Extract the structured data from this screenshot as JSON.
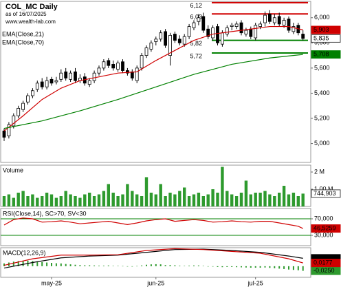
{
  "chart_data": [
    {
      "type": "candlestick",
      "title": "COL_MC Daily",
      "subtitle": "as of 16/07/2025",
      "source": "www.wealth-lab.com",
      "ylim": [
        4.85,
        6.13
      ],
      "yticks": [
        {
          "value": 5,
          "label": "5,000"
        },
        {
          "value": 5.2,
          "label": "5,200"
        },
        {
          "value": 5.4,
          "label": "5,400"
        },
        {
          "value": 5.6,
          "label": "5,600"
        },
        {
          "value": 5.8,
          "label": "5,800"
        },
        {
          "value": 6,
          "label": "6,000"
        }
      ],
      "grid": false,
      "up_color": "#ffffff",
      "down_color": "#000000",
      "open": [
        5.1,
        5.06,
        5.14,
        5.22,
        5.27,
        5.33,
        5.38,
        5.43,
        5.49,
        5.45,
        5.51,
        5.49,
        5.51,
        5.57,
        5.51,
        5.57,
        5.5,
        5.53,
        5.47,
        5.5,
        5.56,
        5.6,
        5.66,
        5.63,
        5.59,
        5.65,
        5.58,
        5.57,
        5.5,
        5.6,
        5.7,
        5.75,
        5.81,
        5.83,
        5.89,
        5.7,
        5.87,
        5.83,
        5.79,
        5.85,
        5.92,
        5.97,
        6.01,
        5.91,
        5.84,
        5.93,
        5.79,
        5.87,
        5.93,
        5.93,
        5.96,
        5.87,
        5.91,
        5.84,
        5.93,
        5.96,
        6.03,
        5.96,
        6.01,
        5.94,
        5.99,
        5.89,
        5.94,
        5.87
      ],
      "high": [
        5.12,
        5.17,
        5.24,
        5.3,
        5.34,
        5.4,
        5.44,
        5.5,
        5.52,
        5.53,
        5.53,
        5.53,
        5.59,
        5.6,
        5.58,
        5.6,
        5.55,
        5.56,
        5.52,
        5.58,
        5.62,
        5.67,
        5.68,
        5.66,
        5.66,
        5.67,
        5.6,
        5.59,
        5.62,
        5.72,
        5.78,
        5.82,
        5.85,
        5.9,
        5.91,
        5.88,
        5.89,
        5.86,
        5.87,
        5.95,
        5.98,
        6.03,
        6.04,
        5.94,
        5.94,
        5.95,
        5.9,
        5.94,
        5.96,
        5.97,
        5.98,
        5.92,
        5.93,
        5.96,
        5.97,
        6.05,
        6.06,
        6.03,
        6.04,
        6.0,
        6.01,
        5.96,
        5.96,
        5.9
      ],
      "low": [
        5.02,
        5.04,
        5.12,
        5.2,
        5.25,
        5.31,
        5.36,
        5.41,
        5.43,
        5.43,
        5.46,
        5.47,
        5.49,
        5.5,
        5.49,
        5.48,
        5.48,
        5.46,
        5.45,
        5.48,
        5.54,
        5.58,
        5.6,
        5.58,
        5.57,
        5.56,
        5.54,
        5.5,
        5.48,
        5.58,
        5.68,
        5.73,
        5.78,
        5.81,
        5.76,
        5.62,
        5.8,
        5.78,
        5.77,
        5.83,
        5.9,
        5.94,
        5.88,
        5.83,
        5.82,
        5.78,
        5.77,
        5.85,
        5.9,
        5.91,
        5.86,
        5.85,
        5.83,
        5.82,
        5.91,
        5.93,
        5.95,
        5.94,
        5.93,
        5.92,
        5.88,
        5.87,
        5.86,
        5.82
      ],
      "close": [
        5.05,
        5.15,
        5.22,
        5.28,
        5.32,
        5.38,
        5.42,
        5.48,
        5.45,
        5.5,
        5.48,
        5.5,
        5.56,
        5.52,
        5.56,
        5.5,
        5.52,
        5.48,
        5.5,
        5.56,
        5.6,
        5.65,
        5.62,
        5.6,
        5.64,
        5.58,
        5.56,
        5.52,
        5.6,
        5.7,
        5.76,
        5.8,
        5.83,
        5.88,
        5.78,
        5.86,
        5.82,
        5.8,
        5.85,
        5.93,
        5.96,
        6.0,
        5.9,
        5.85,
        5.92,
        5.8,
        5.88,
        5.92,
        5.94,
        5.95,
        5.88,
        5.9,
        5.85,
        5.94,
        5.95,
        6.02,
        5.97,
        6.0,
        5.95,
        5.98,
        5.9,
        5.93,
        5.88,
        5.835
      ],
      "value_labels": [
        null,
        null,
        null,
        null,
        null,
        null,
        null,
        null,
        null,
        null,
        null,
        null,
        null,
        null,
        null,
        null,
        null,
        null,
        null,
        null,
        null,
        null,
        null,
        null,
        null,
        null,
        null,
        null,
        null,
        null,
        null,
        null,
        null,
        null,
        null,
        null,
        null,
        null,
        null,
        null,
        null,
        null,
        null,
        null,
        null,
        null,
        null,
        null,
        null,
        null,
        null,
        null,
        null,
        null,
        null,
        null,
        null,
        null,
        null,
        null,
        null,
        null,
        null,
        "5,835"
      ],
      "series": [
        {
          "name": "EMA(Close,21)",
          "color": "#d00000",
          "x": [
            0,
            4,
            8,
            12,
            16,
            20,
            24,
            28,
            32,
            36,
            40,
            44,
            48,
            52,
            56,
            60,
            63
          ],
          "values": [
            5.1,
            5.22,
            5.35,
            5.44,
            5.5,
            5.53,
            5.56,
            5.57,
            5.66,
            5.74,
            5.82,
            5.87,
            5.89,
            5.91,
            5.93,
            5.93,
            5.903
          ],
          "value_labels": [
            null,
            null,
            null,
            null,
            null,
            null,
            null,
            null,
            null,
            null,
            null,
            null,
            null,
            null,
            null,
            null,
            "5,903"
          ]
        },
        {
          "name": "EMA(Close,70)",
          "color": "#008000",
          "x": [
            0,
            8,
            16,
            24,
            32,
            40,
            48,
            56,
            63
          ],
          "values": [
            5.12,
            5.18,
            5.26,
            5.35,
            5.45,
            5.55,
            5.63,
            5.68,
            5.708
          ],
          "value_labels": [
            null,
            null,
            null,
            null,
            null,
            null,
            null,
            null,
            "5,708"
          ]
        }
      ],
      "levels": [
        {
          "value": 6.12,
          "label": "6,12",
          "color": "#d00000"
        },
        {
          "value": 6.03,
          "label": "6,03",
          "color": "#d00000"
        },
        {
          "value": 5.82,
          "label": "5,82",
          "color": "#008000"
        },
        {
          "value": 5.72,
          "label": "5,72",
          "color": "#008000"
        }
      ]
    },
    {
      "type": "bar",
      "title": "Volume",
      "color": "#2e9a2e",
      "ylim": [
        0,
        2.4
      ],
      "yticks": [
        {
          "value": 1,
          "label": "1,00 M"
        },
        {
          "value": 2,
          "label": "2 M"
        }
      ],
      "grid": false,
      "values": [
        0.6,
        0.7,
        0.5,
        0.8,
        0.9,
        0.6,
        0.7,
        0.5,
        0.6,
        0.8,
        0.7,
        0.5,
        0.6,
        0.9,
        0.7,
        0.6,
        0.5,
        0.7,
        0.8,
        0.6,
        0.7,
        0.9,
        1.3,
        0.8,
        0.6,
        0.7,
        1.3,
        0.9,
        0.7,
        0.6,
        1.7,
        0.8,
        0.7,
        1.3,
        0.6,
        0.8,
        0.7,
        0.9,
        1.1,
        0.6,
        0.7,
        0.8,
        0.6,
        0.7,
        1.0,
        0.8,
        2.3,
        0.9,
        0.7,
        0.6,
        0.8,
        1.5,
        0.7,
        0.8,
        0.8,
        0.9,
        0.7,
        0.6,
        0.8,
        1.2,
        0.7,
        0.8,
        0.6,
        0.744903
      ],
      "value_labels": [
        null,
        null,
        null,
        null,
        null,
        null,
        null,
        null,
        null,
        null,
        null,
        null,
        null,
        null,
        null,
        null,
        null,
        null,
        null,
        null,
        null,
        null,
        null,
        null,
        null,
        null,
        null,
        null,
        null,
        null,
        null,
        null,
        null,
        null,
        null,
        null,
        null,
        null,
        null,
        null,
        null,
        null,
        null,
        null,
        null,
        null,
        null,
        null,
        null,
        null,
        null,
        null,
        null,
        null,
        null,
        null,
        null,
        null,
        null,
        null,
        null,
        null,
        null,
        "744,903"
      ]
    },
    {
      "type": "line",
      "title": "RSI(Close,14), SC>70, SV<30",
      "ylim": [
        5,
        95
      ],
      "yticks": [
        {
          "value": 30,
          "label": "30,000"
        },
        {
          "value": 70,
          "label": "70,000"
        }
      ],
      "grid": true,
      "grid_color": "#008000",
      "series": [
        {
          "color": "#d00000",
          "x": [
            0,
            2,
            4,
            6,
            8,
            10,
            12,
            14,
            16,
            18,
            20,
            22,
            24,
            26,
            28,
            30,
            32,
            34,
            36,
            38,
            40,
            42,
            44,
            46,
            48,
            50,
            52,
            54,
            56,
            58,
            60,
            62,
            63
          ],
          "values": [
            55,
            68,
            72,
            70,
            62,
            63,
            65,
            62,
            58,
            60,
            62,
            64,
            60,
            56,
            60,
            65,
            68,
            70,
            64,
            66,
            68,
            66,
            62,
            63,
            65,
            63,
            62,
            64,
            64,
            60,
            56,
            52,
            46.5259
          ],
          "value_labels": [
            null,
            null,
            null,
            null,
            null,
            null,
            null,
            null,
            null,
            null,
            null,
            null,
            null,
            null,
            null,
            null,
            null,
            null,
            null,
            null,
            null,
            null,
            null,
            null,
            null,
            null,
            null,
            null,
            null,
            null,
            null,
            null,
            "46,5259"
          ]
        }
      ]
    },
    {
      "type": "line",
      "title": "MACD(12,26,9)",
      "ylim": [
        -0.06,
        0.1
      ],
      "grid": false,
      "xticks": [
        {
          "value": 10,
          "label": "may-25"
        },
        {
          "value": 32,
          "label": "jun-25"
        },
        {
          "value": 53,
          "label": "jul-25"
        }
      ],
      "series": [
        {
          "style": "bar",
          "color": "#2e9a2e",
          "values": [
            0.015,
            0.02,
            0.025,
            0.028,
            0.03,
            0.03,
            0.028,
            0.025,
            0.022,
            0.02,
            0.018,
            0.016,
            0.015,
            0.012,
            0.01,
            0.008,
            0.006,
            0.005,
            0.005,
            0.004,
            0.003,
            0.003,
            0.004,
            0.002,
            0.002,
            0.001,
            -0.001,
            -0.002,
            0.001,
            0.004,
            0.008,
            0.01,
            0.011,
            0.01,
            0.006,
            0.006,
            0.005,
            0.003,
            0.002,
            0.003,
            0.004,
            0.004,
            0.002,
            -0.001,
            -0.002,
            -0.004,
            -0.005,
            -0.004,
            -0.004,
            -0.005,
            -0.006,
            -0.007,
            -0.008,
            -0.008,
            -0.008,
            -0.007,
            -0.009,
            -0.011,
            -0.013,
            -0.015,
            -0.018,
            -0.02,
            -0.022,
            -0.025
          ],
          "value_labels": [
            null,
            null,
            null,
            null,
            null,
            null,
            null,
            null,
            null,
            null,
            null,
            null,
            null,
            null,
            null,
            null,
            null,
            null,
            null,
            null,
            null,
            null,
            null,
            null,
            null,
            null,
            null,
            null,
            null,
            null,
            null,
            null,
            null,
            null,
            null,
            null,
            null,
            null,
            null,
            null,
            null,
            null,
            null,
            null,
            null,
            null,
            null,
            null,
            null,
            null,
            null,
            null,
            null,
            null,
            null,
            null,
            null,
            null,
            null,
            null,
            null,
            null,
            null,
            "-0,0250"
          ]
        },
        {
          "style": "line",
          "color": "#000000",
          "x": [
            0,
            6,
            12,
            18,
            24,
            30,
            36,
            42,
            48,
            54,
            60,
            63
          ],
          "values": [
            -0.01,
            0.02,
            0.045,
            0.055,
            0.06,
            0.075,
            0.09,
            0.092,
            0.085,
            0.075,
            0.055,
            0.0428
          ],
          "value_labels": [
            null,
            null,
            null,
            null,
            null,
            null,
            null,
            null,
            null,
            null,
            null,
            "0,0428"
          ]
        },
        {
          "style": "line",
          "color": "#d00000",
          "x": [
            0,
            6,
            12,
            18,
            24,
            30,
            36,
            42,
            48,
            54,
            60,
            63
          ],
          "values": [
            0.005,
            0.04,
            0.06,
            0.06,
            0.062,
            0.085,
            0.095,
            0.09,
            0.08,
            0.07,
            0.04,
            0.0177
          ],
          "value_labels": [
            null,
            null,
            null,
            null,
            null,
            null,
            null,
            null,
            null,
            null,
            null,
            "0,0177"
          ]
        }
      ]
    }
  ]
}
